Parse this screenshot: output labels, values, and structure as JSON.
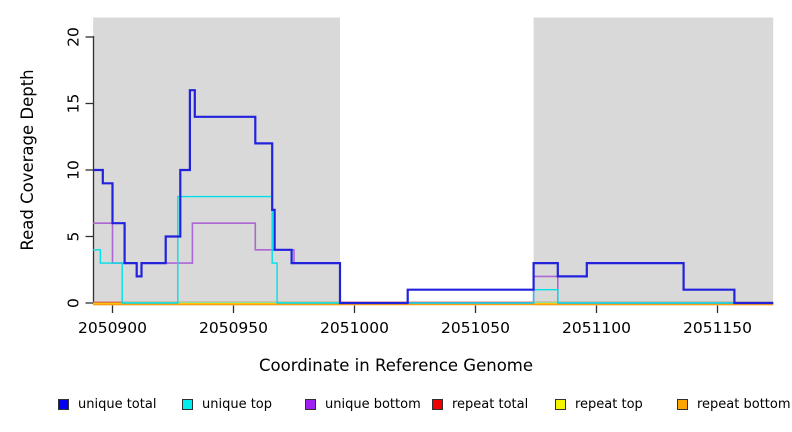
{
  "chart_data": {
    "type": "line",
    "subtype": "step-coverage-plot",
    "title": "",
    "xlabel": "Coordinate in Reference Genome",
    "ylabel": "Read Coverage Depth",
    "xlim": [
      2050892,
      2051173
    ],
    "ylim": [
      0,
      21.5
    ],
    "grid": "off",
    "x_ticks": [
      2050900,
      2050950,
      2051000,
      2051050,
      2051100,
      2051150
    ],
    "y_ticks": [
      0,
      5,
      10,
      15,
      20
    ],
    "background_color": "#ffffff",
    "shaded_regions": [
      {
        "from": 2050892,
        "to": 2050994,
        "color": "#d9d9d9"
      },
      {
        "from": 2051074,
        "to": 2051173,
        "color": "#d9d9d9"
      }
    ],
    "zero_overlap_segments": [
      {
        "from": 2050904,
        "to": 2050994,
        "color": "#8fe0a4"
      },
      {
        "from": 2051074,
        "to": 2051173,
        "color": "#8fe0a4"
      }
    ],
    "series": [
      {
        "name": "unique total",
        "color": "#2222dd",
        "legend_color": "#0000f0",
        "line_width": 2.2,
        "dy": 0,
        "end": 2051173,
        "steps": [
          [
            2050892,
            10
          ],
          [
            2050896,
            9
          ],
          [
            2050900,
            6
          ],
          [
            2050905,
            3
          ],
          [
            2050910,
            2
          ],
          [
            2050912,
            3
          ],
          [
            2050922,
            5
          ],
          [
            2050928,
            10
          ],
          [
            2050932,
            16
          ],
          [
            2050934,
            14
          ],
          [
            2050959,
            12
          ],
          [
            2050966,
            7
          ],
          [
            2050967,
            4
          ],
          [
            2050974,
            3
          ],
          [
            2050994,
            0
          ],
          [
            2051022,
            1
          ],
          [
            2051074,
            3
          ],
          [
            2051084,
            2
          ],
          [
            2051096,
            3
          ],
          [
            2051136,
            1
          ],
          [
            2051157,
            0
          ]
        ]
      },
      {
        "name": "unique top",
        "color": "#00dfe8",
        "legend_color": "#00eeee",
        "line_width": 1.4,
        "dy": 0,
        "end": 2051173,
        "steps": [
          [
            2050892,
            4
          ],
          [
            2050895,
            3
          ],
          [
            2050904,
            0
          ],
          [
            2050927,
            8
          ],
          [
            2050966,
            3
          ],
          [
            2050968,
            0
          ],
          [
            2051074,
            1
          ],
          [
            2051084,
            0
          ]
        ]
      },
      {
        "name": "unique bottom",
        "color": "#ad66d5",
        "legend_color": "#a020f0",
        "line_width": 1.6,
        "dy": 0,
        "end": 2051173,
        "steps": [
          [
            2050892,
            6
          ],
          [
            2050900,
            3
          ],
          [
            2050910,
            2
          ],
          [
            2050912,
            3
          ],
          [
            2050933,
            6
          ],
          [
            2050959,
            4
          ],
          [
            2050975,
            3
          ],
          [
            2050994,
            0
          ],
          [
            2051074,
            2
          ],
          [
            2051084,
            0
          ]
        ]
      },
      {
        "name": "repeat total",
        "color": "#e04a4a",
        "legend_color": "#ee0000",
        "line_width": 1.2,
        "dy": -0.8,
        "end": 2051173,
        "steps": [
          [
            2050892,
            0
          ]
        ]
      },
      {
        "name": "repeat top",
        "color": "#f0f000",
        "legend_color": "#f5f500",
        "line_width": 1.2,
        "dy": 0,
        "end": 2051173,
        "steps": [
          [
            2050892,
            0
          ]
        ]
      },
      {
        "name": "repeat bottom",
        "color": "#ff9e0e",
        "legend_color": "#ffa500",
        "line_width": 1.8,
        "dy": 1.4,
        "end": 2051173,
        "steps": [
          [
            2050892,
            0
          ]
        ]
      }
    ]
  },
  "legend": {
    "items": [
      {
        "label": "unique total"
      },
      {
        "label": "unique top"
      },
      {
        "label": "unique bottom"
      },
      {
        "label": "repeat total"
      },
      {
        "label": "repeat top"
      },
      {
        "label": "repeat bottom"
      }
    ]
  }
}
